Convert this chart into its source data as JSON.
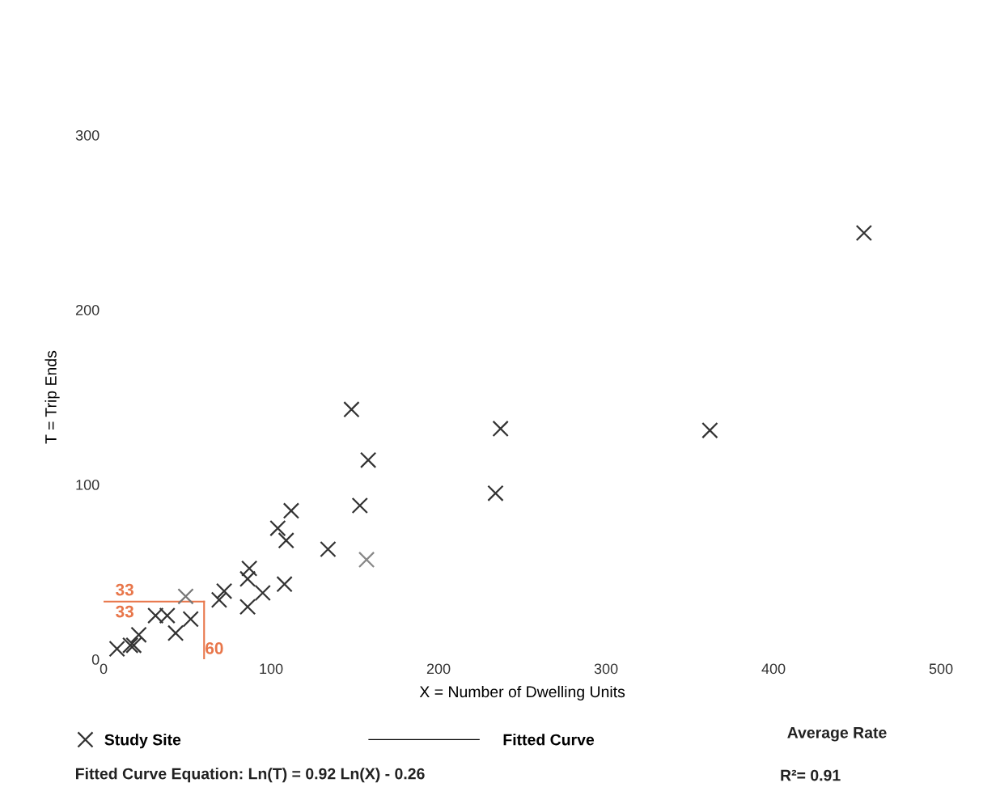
{
  "chart_data": {
    "type": "scatter",
    "xlabel": "X = Number of Dwelling Units",
    "ylabel": "T = Trip Ends",
    "xlim": [
      0,
      500
    ],
    "xticks": [
      0,
      100,
      200,
      300,
      400,
      500
    ],
    "ylim": [
      0,
      300
    ],
    "yticks": [
      0,
      100,
      200,
      300
    ],
    "grid": false,
    "legend": "bottom",
    "marker": "cross",
    "series": [
      {
        "name": "Study Site",
        "color": "#333333",
        "x": [
          8,
          16,
          18,
          21,
          31,
          38,
          43,
          49,
          52,
          69,
          72,
          86,
          87,
          86,
          95,
          104,
          109,
          112,
          108,
          134,
          153,
          157,
          148,
          158,
          237,
          234,
          362,
          454
        ],
        "values": [
          6,
          8,
          8,
          14,
          25,
          25,
          15,
          36,
          23,
          34,
          39,
          30,
          52,
          46,
          38,
          75,
          68,
          85,
          43,
          63,
          88,
          57,
          143,
          114,
          132,
          95,
          131,
          244
        ],
        "colors": [
          "#333333",
          "#333333",
          "#333333",
          "#333333",
          "#333333",
          "#333333",
          "#333333",
          "#777777",
          "#333333",
          "#333333",
          "#333333",
          "#333333",
          "#333333",
          "#333333",
          "#333333",
          "#333333",
          "#333333",
          "#333333",
          "#333333",
          "#333333",
          "#333333",
          "#888888",
          "#333333",
          "#333333",
          "#333333",
          "#333333",
          "#333333",
          "#333333"
        ]
      },
      {
        "name": "Fitted Curve",
        "type": "line",
        "color": "#000000"
      }
    ],
    "ref_lines": [
      {
        "axis": "y",
        "value": 33,
        "label": "33",
        "color": "#e8764a"
      },
      {
        "axis": "x",
        "value": 60,
        "label": "60",
        "color": "#e8764a"
      }
    ],
    "annotations": [
      {
        "text": "33",
        "x": 0,
        "y": 33
      },
      "Average Rate",
      "Fitted Curve Equation: Ln(T) = 0.92 Ln(X) - 0.26",
      "R²= 0.91"
    ]
  }
}
